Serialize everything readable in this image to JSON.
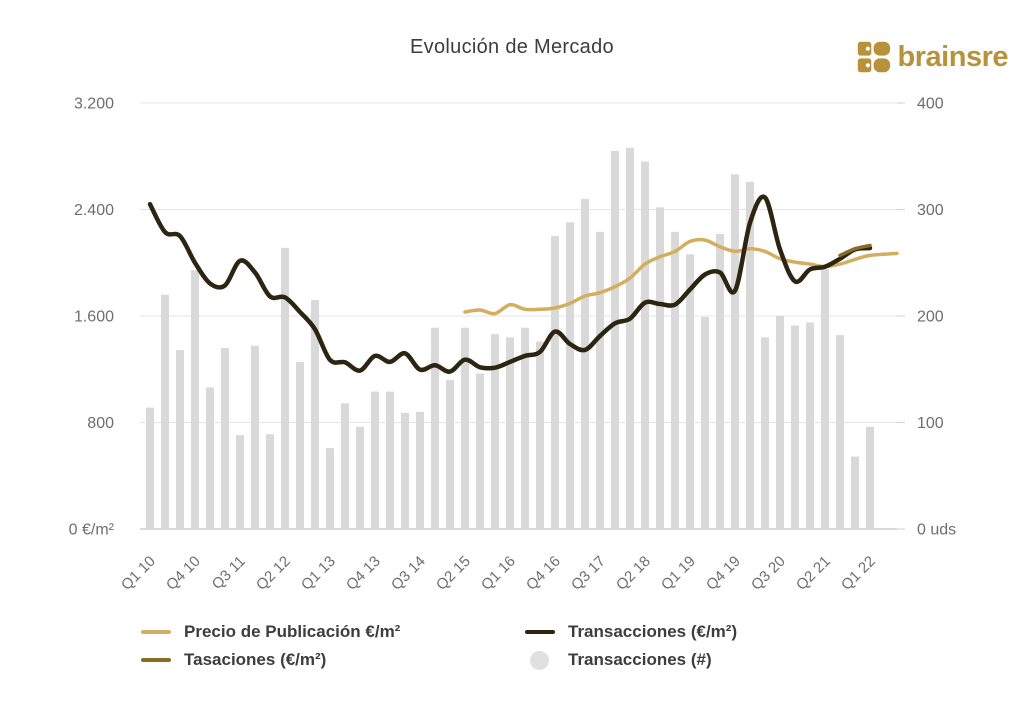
{
  "header": {
    "title": "Evolución de Mercado",
    "logo_text": "brainsre",
    "logo_color": "#b7923b"
  },
  "chart_data": {
    "type": "mixed",
    "title": "Evolución de Mercado",
    "grid": true,
    "legend_position": "bottom",
    "categories": [
      "Q1 10",
      "Q2 10",
      "Q3 10",
      "Q4 10",
      "Q1 11",
      "Q2 11",
      "Q3 11",
      "Q4 11",
      "Q1 12",
      "Q2 12",
      "Q3 12",
      "Q4 12",
      "Q1 13",
      "Q2 13",
      "Q3 13",
      "Q4 13",
      "Q1 14",
      "Q2 14",
      "Q3 14",
      "Q4 14",
      "Q1 15",
      "Q2 15",
      "Q3 15",
      "Q4 15",
      "Q1 16",
      "Q2 16",
      "Q3 16",
      "Q4 16",
      "Q1 17",
      "Q2 17",
      "Q3 17",
      "Q4 17",
      "Q1 18",
      "Q2 18",
      "Q3 18",
      "Q4 18",
      "Q1 19",
      "Q2 19",
      "Q3 19",
      "Q4 19",
      "Q1 20",
      "Q2 20",
      "Q3 20",
      "Q4 20",
      "Q1 21",
      "Q2 21",
      "Q3 21",
      "Q4 21",
      "Q1 22"
    ],
    "x_tick_labels": [
      "Q1 10",
      "Q4 10",
      "Q3 11",
      "Q2 12",
      "Q1 13",
      "Q4 13",
      "Q3 14",
      "Q2 15",
      "Q1 16",
      "Q4 16",
      "Q3 17",
      "Q2 18",
      "Q1 19",
      "Q4 19",
      "Q3 20",
      "Q2 21",
      "Q1 22"
    ],
    "x_tick_step": 3,
    "y_left": {
      "ticks": [
        "0 €/m²",
        "800",
        "1.600",
        "2.400",
        "3.200"
      ],
      "values": [
        0,
        800,
        1600,
        2400,
        3200
      ],
      "range": [
        0,
        3200
      ],
      "unit": "€/m²"
    },
    "y_right": {
      "ticks": [
        "0 uds",
        "100",
        "200",
        "300",
        "400"
      ],
      "values": [
        0,
        100,
        200,
        300,
        400
      ],
      "range": [
        0,
        400
      ],
      "unit": "uds"
    },
    "series": [
      {
        "name": "Transacciones (#)",
        "type": "bar",
        "axis": "right",
        "color": "#d9d9d9",
        "z": 0,
        "start_index": 0,
        "values": [
          114,
          220,
          168,
          243,
          133,
          170,
          88,
          172,
          89,
          264,
          157,
          215,
          76,
          118,
          96,
          129,
          129,
          109,
          110,
          189,
          140,
          189,
          146,
          183,
          180,
          189,
          176,
          275,
          288,
          310,
          279,
          355,
          358,
          345,
          302,
          279,
          258,
          199,
          277,
          333,
          326,
          180,
          200,
          191,
          194,
          244,
          182,
          68,
          96
        ]
      },
      {
        "name": "Precio de Publicación €/m²",
        "type": "line",
        "axis": "left",
        "color": "#d3ae5e",
        "z": 1,
        "start_index": 21,
        "extend_to_edge": true,
        "values": [
          1630,
          1645,
          1618,
          1685,
          1650,
          1650,
          1660,
          1695,
          1750,
          1775,
          1820,
          1885,
          1990,
          2045,
          2085,
          2160,
          2170,
          2120,
          2085,
          2105,
          2085,
          2030,
          2005,
          1990,
          1972,
          1990,
          2025,
          2055
        ]
      },
      {
        "name": "Transacciones (€/m²)",
        "type": "line",
        "axis": "left",
        "color": "#2d2512",
        "z": 2,
        "start_index": 0,
        "values": [
          2440,
          2230,
          2200,
          2000,
          1845,
          1830,
          2015,
          1927,
          1747,
          1740,
          1630,
          1500,
          1270,
          1252,
          1190,
          1300,
          1255,
          1320,
          1197,
          1230,
          1182,
          1272,
          1215,
          1212,
          1255,
          1300,
          1330,
          1483,
          1390,
          1345,
          1450,
          1545,
          1580,
          1700,
          1690,
          1686,
          1799,
          1912,
          1927,
          1790,
          2300,
          2490,
          2100,
          1860,
          1950,
          1970,
          2030,
          2100,
          2110
        ]
      },
      {
        "name": "Tasaciones (€/m²)",
        "type": "line",
        "axis": "left",
        "color": "#8a6c24",
        "z": 3,
        "start_index": 46,
        "values": [
          2055,
          2105,
          2130
        ]
      }
    ]
  },
  "legend": {
    "items": [
      {
        "label": "Precio de Publicación €/m²",
        "swatch": "line",
        "color": "#d3ae5e"
      },
      {
        "label": "Tasaciones (€/m²)",
        "swatch": "line",
        "color": "#8a6c24"
      },
      {
        "label": "Transacciones (€/m²)",
        "swatch": "line",
        "color": "#2d2512"
      },
      {
        "label": "Transacciones (#)",
        "swatch": "circle",
        "color": "#e0e0e0"
      }
    ]
  }
}
